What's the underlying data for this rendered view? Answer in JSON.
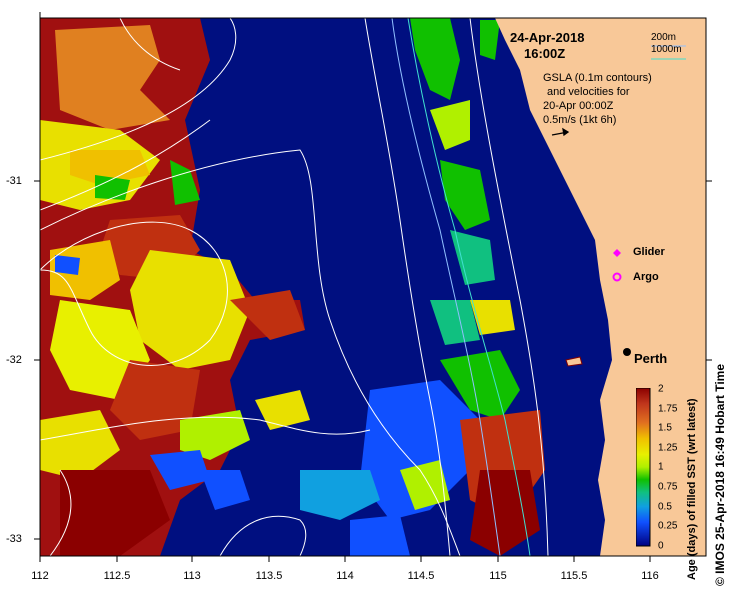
{
  "header": {
    "date": "24-Apr-2018",
    "time": "16:00Z"
  },
  "info": {
    "line1": "GSLA (0.1m contours)",
    "line2": "and velocities for",
    "line3": "20-Apr 00:00Z",
    "line4": "0.5m/s (1kt 6h)"
  },
  "depth_legend": {
    "d1": "200m",
    "d2": "1000m"
  },
  "symbol_legend": {
    "glider": "Glider",
    "argo": "Argo"
  },
  "place": {
    "city": "Perth"
  },
  "axes": {
    "x_ticks": [
      "112",
      "112.5",
      "113",
      "113.5",
      "114",
      "114.5",
      "115",
      "115.5",
      "116"
    ],
    "y_ticks": [
      "-31",
      "-32",
      "-33"
    ]
  },
  "colorbar": {
    "title": "Age (days) of filled SST (wrt latest)",
    "labels": [
      "2",
      "1.75",
      "1.5",
      "1.25",
      "1",
      "0.75",
      "0.5",
      "0.25",
      "0"
    ],
    "colors": [
      "#8b0000",
      "#c0361c",
      "#e07020",
      "#f0c000",
      "#e8f000",
      "#b0f000",
      "#10c000",
      "#10c080",
      "#10a0e0",
      "#1050ff",
      "#000080"
    ]
  },
  "credit": "© IMOS 25-Apr-2018 16:49 Hobart Time",
  "colors": {
    "land": "#f8c898",
    "ocean": "#000f80"
  }
}
